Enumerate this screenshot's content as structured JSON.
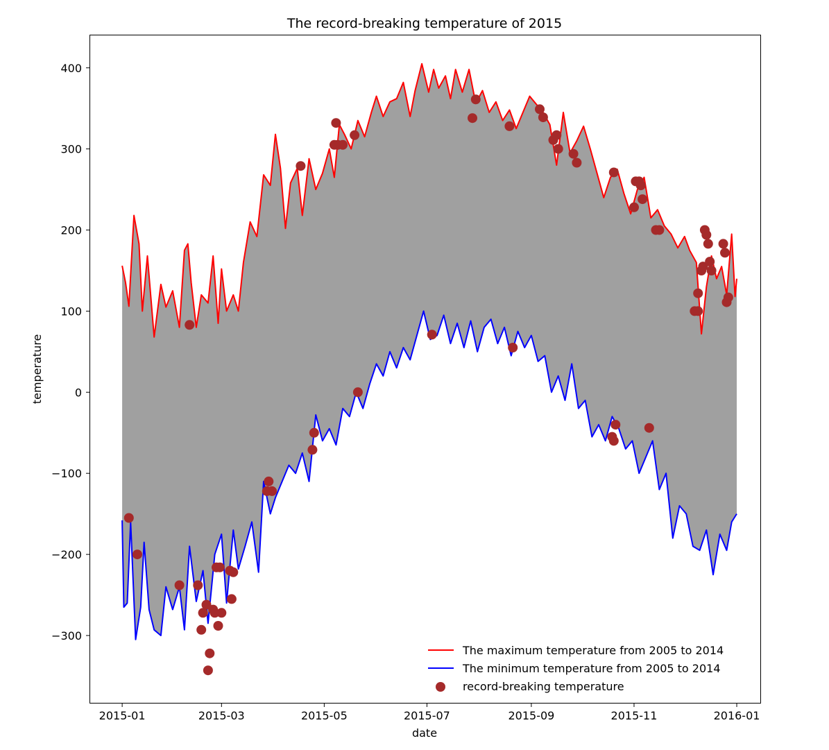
{
  "chart_data": {
    "type": "line",
    "title": "The record-breaking temperature of 2015",
    "xlabel": "date",
    "ylabel": "temperature",
    "x_axis": {
      "type": "date",
      "range": [
        "2014-12-13",
        "2016-01-15"
      ],
      "ticks": [
        "2015-01",
        "2015-03",
        "2015-05",
        "2015-07",
        "2015-09",
        "2015-11",
        "2016-01"
      ]
    },
    "y_axis": {
      "range": [
        -383,
        440
      ],
      "ticks": [
        -300,
        -200,
        -100,
        0,
        100,
        200,
        300,
        400
      ]
    },
    "y_tick_labels": [
      "−300",
      "−200",
      "−100",
      "0",
      "100",
      "200",
      "300",
      "400"
    ],
    "grid": false,
    "fill_between": {
      "color": "#a0a0a0"
    },
    "legend_placement": "lower-right",
    "series": [
      {
        "name": "The maximum temperature from 2005 to 2014",
        "color": "#ff0000",
        "kind": "line",
        "points": [
          [
            "2015-01-01",
            156
          ],
          [
            "2015-01-03",
            135
          ],
          [
            "2015-01-05",
            106
          ],
          [
            "2015-01-08",
            218
          ],
          [
            "2015-01-11",
            183
          ],
          [
            "2015-01-13",
            100
          ],
          [
            "2015-01-16",
            168
          ],
          [
            "2015-01-20",
            68
          ],
          [
            "2015-01-24",
            133
          ],
          [
            "2015-01-27",
            105
          ],
          [
            "2015-01-31",
            125
          ],
          [
            "2015-02-04",
            80
          ],
          [
            "2015-02-07",
            175
          ],
          [
            "2015-02-09",
            183
          ],
          [
            "2015-02-11",
            135
          ],
          [
            "2015-02-14",
            80
          ],
          [
            "2015-02-17",
            120
          ],
          [
            "2015-02-21",
            110
          ],
          [
            "2015-02-24",
            168
          ],
          [
            "2015-02-27",
            85
          ],
          [
            "2015-03-01",
            152
          ],
          [
            "2015-03-04",
            100
          ],
          [
            "2015-03-08",
            120
          ],
          [
            "2015-03-11",
            100
          ],
          [
            "2015-03-14",
            160
          ],
          [
            "2015-03-18",
            210
          ],
          [
            "2015-03-22",
            192
          ],
          [
            "2015-03-26",
            268
          ],
          [
            "2015-03-30",
            255
          ],
          [
            "2015-04-02",
            318
          ],
          [
            "2015-04-05",
            276
          ],
          [
            "2015-04-08",
            202
          ],
          [
            "2015-04-11",
            258
          ],
          [
            "2015-04-15",
            276
          ],
          [
            "2015-04-18",
            218
          ],
          [
            "2015-04-22",
            288
          ],
          [
            "2015-04-26",
            250
          ],
          [
            "2015-04-30",
            270
          ],
          [
            "2015-05-04",
            300
          ],
          [
            "2015-05-07",
            265
          ],
          [
            "2015-05-10",
            330
          ],
          [
            "2015-05-13",
            318
          ],
          [
            "2015-05-17",
            300
          ],
          [
            "2015-05-21",
            335
          ],
          [
            "2015-05-25",
            315
          ],
          [
            "2015-05-29",
            345
          ],
          [
            "2015-06-01",
            365
          ],
          [
            "2015-06-05",
            340
          ],
          [
            "2015-06-09",
            358
          ],
          [
            "2015-06-13",
            362
          ],
          [
            "2015-06-17",
            382
          ],
          [
            "2015-06-21",
            340
          ],
          [
            "2015-06-24",
            372
          ],
          [
            "2015-06-28",
            405
          ],
          [
            "2015-07-02",
            370
          ],
          [
            "2015-07-05",
            398
          ],
          [
            "2015-07-08",
            375
          ],
          [
            "2015-07-12",
            390
          ],
          [
            "2015-07-15",
            362
          ],
          [
            "2015-07-18",
            398
          ],
          [
            "2015-07-22",
            370
          ],
          [
            "2015-07-26",
            398
          ],
          [
            "2015-07-30",
            356
          ],
          [
            "2015-08-03",
            372
          ],
          [
            "2015-08-07",
            345
          ],
          [
            "2015-08-11",
            358
          ],
          [
            "2015-08-15",
            335
          ],
          [
            "2015-08-19",
            348
          ],
          [
            "2015-08-23",
            325
          ],
          [
            "2015-08-27",
            345
          ],
          [
            "2015-08-31",
            365
          ],
          [
            "2015-09-04",
            355
          ],
          [
            "2015-09-08",
            345
          ],
          [
            "2015-09-12",
            330
          ],
          [
            "2015-09-16",
            280
          ],
          [
            "2015-09-20",
            345
          ],
          [
            "2015-09-24",
            295
          ],
          [
            "2015-09-28",
            310
          ],
          [
            "2015-10-02",
            328
          ],
          [
            "2015-10-06",
            300
          ],
          [
            "2015-10-10",
            270
          ],
          [
            "2015-10-14",
            240
          ],
          [
            "2015-10-18",
            265
          ],
          [
            "2015-10-22",
            275
          ],
          [
            "2015-10-26",
            245
          ],
          [
            "2015-10-30",
            220
          ],
          [
            "2015-11-03",
            250
          ],
          [
            "2015-11-07",
            265
          ],
          [
            "2015-11-11",
            215
          ],
          [
            "2015-11-15",
            225
          ],
          [
            "2015-11-19",
            205
          ],
          [
            "2015-11-23",
            195
          ],
          [
            "2015-11-27",
            178
          ],
          [
            "2015-12-01",
            192
          ],
          [
            "2015-12-04",
            175
          ],
          [
            "2015-12-08",
            160
          ],
          [
            "2015-12-11",
            72
          ],
          [
            "2015-12-14",
            130
          ],
          [
            "2015-12-17",
            168
          ],
          [
            "2015-12-20",
            140
          ],
          [
            "2015-12-23",
            155
          ],
          [
            "2015-12-26",
            120
          ],
          [
            "2015-12-29",
            195
          ],
          [
            "2015-12-31",
            118
          ],
          [
            "2016-01-01",
            140
          ]
        ]
      },
      {
        "name": "The minimum temperature from 2005 to 2014",
        "color": "#0000ff",
        "kind": "line",
        "points": [
          [
            "2015-01-01",
            -158
          ],
          [
            "2015-01-02",
            -265
          ],
          [
            "2015-01-04",
            -260
          ],
          [
            "2015-01-06",
            -160
          ],
          [
            "2015-01-09",
            -305
          ],
          [
            "2015-01-12",
            -265
          ],
          [
            "2015-01-14",
            -185
          ],
          [
            "2015-01-17",
            -268
          ],
          [
            "2015-01-20",
            -293
          ],
          [
            "2015-01-24",
            -300
          ],
          [
            "2015-01-27",
            -240
          ],
          [
            "2015-01-31",
            -268
          ],
          [
            "2015-02-04",
            -240
          ],
          [
            "2015-02-07",
            -293
          ],
          [
            "2015-02-10",
            -190
          ],
          [
            "2015-02-14",
            -258
          ],
          [
            "2015-02-18",
            -220
          ],
          [
            "2015-02-21",
            -285
          ],
          [
            "2015-02-25",
            -200
          ],
          [
            "2015-03-01",
            -175
          ],
          [
            "2015-03-04",
            -260
          ],
          [
            "2015-03-08",
            -170
          ],
          [
            "2015-03-11",
            -218
          ],
          [
            "2015-03-15",
            -190
          ],
          [
            "2015-03-19",
            -160
          ],
          [
            "2015-03-23",
            -222
          ],
          [
            "2015-03-26",
            -110
          ],
          [
            "2015-03-30",
            -150
          ],
          [
            "2015-04-02",
            -130
          ],
          [
            "2015-04-06",
            -110
          ],
          [
            "2015-04-10",
            -90
          ],
          [
            "2015-04-14",
            -100
          ],
          [
            "2015-04-18",
            -75
          ],
          [
            "2015-04-22",
            -110
          ],
          [
            "2015-04-26",
            -28
          ],
          [
            "2015-04-30",
            -60
          ],
          [
            "2015-05-04",
            -45
          ],
          [
            "2015-05-08",
            -65
          ],
          [
            "2015-05-12",
            -20
          ],
          [
            "2015-05-16",
            -30
          ],
          [
            "2015-05-20",
            0
          ],
          [
            "2015-05-24",
            -20
          ],
          [
            "2015-05-28",
            10
          ],
          [
            "2015-06-01",
            35
          ],
          [
            "2015-06-05",
            20
          ],
          [
            "2015-06-09",
            50
          ],
          [
            "2015-06-13",
            30
          ],
          [
            "2015-06-17",
            55
          ],
          [
            "2015-06-21",
            40
          ],
          [
            "2015-06-25",
            70
          ],
          [
            "2015-06-29",
            100
          ],
          [
            "2015-07-03",
            65
          ],
          [
            "2015-07-07",
            70
          ],
          [
            "2015-07-11",
            95
          ],
          [
            "2015-07-15",
            60
          ],
          [
            "2015-07-19",
            85
          ],
          [
            "2015-07-23",
            55
          ],
          [
            "2015-07-27",
            88
          ],
          [
            "2015-07-31",
            50
          ],
          [
            "2015-08-04",
            80
          ],
          [
            "2015-08-08",
            90
          ],
          [
            "2015-08-12",
            60
          ],
          [
            "2015-08-16",
            80
          ],
          [
            "2015-08-20",
            45
          ],
          [
            "2015-08-24",
            75
          ],
          [
            "2015-08-28",
            55
          ],
          [
            "2015-09-01",
            70
          ],
          [
            "2015-09-05",
            38
          ],
          [
            "2015-09-09",
            45
          ],
          [
            "2015-09-13",
            0
          ],
          [
            "2015-09-17",
            20
          ],
          [
            "2015-09-21",
            -10
          ],
          [
            "2015-09-25",
            35
          ],
          [
            "2015-09-29",
            -20
          ],
          [
            "2015-10-03",
            -10
          ],
          [
            "2015-10-07",
            -55
          ],
          [
            "2015-10-11",
            -40
          ],
          [
            "2015-10-15",
            -60
          ],
          [
            "2015-10-19",
            -30
          ],
          [
            "2015-10-23",
            -45
          ],
          [
            "2015-10-27",
            -70
          ],
          [
            "2015-10-31",
            -60
          ],
          [
            "2015-11-04",
            -100
          ],
          [
            "2015-11-08",
            -80
          ],
          [
            "2015-11-12",
            -60
          ],
          [
            "2015-11-16",
            -120
          ],
          [
            "2015-11-20",
            -100
          ],
          [
            "2015-11-24",
            -180
          ],
          [
            "2015-11-28",
            -140
          ],
          [
            "2015-12-02",
            -150
          ],
          [
            "2015-12-06",
            -190
          ],
          [
            "2015-12-10",
            -195
          ],
          [
            "2015-12-14",
            -170
          ],
          [
            "2015-12-18",
            -225
          ],
          [
            "2015-12-22",
            -175
          ],
          [
            "2015-12-26",
            -195
          ],
          [
            "2015-12-29",
            -160
          ],
          [
            "2016-01-01",
            -150
          ]
        ]
      },
      {
        "name": "record-breaking temperature",
        "color": "#a52a2a",
        "kind": "scatter",
        "points": [
          [
            "2015-01-05",
            -155
          ],
          [
            "2015-01-10",
            -200
          ],
          [
            "2015-02-04",
            -238
          ],
          [
            "2015-02-10",
            83
          ],
          [
            "2015-02-15",
            -238
          ],
          [
            "2015-02-17",
            -293
          ],
          [
            "2015-02-18",
            -272
          ],
          [
            "2015-02-20",
            -262
          ],
          [
            "2015-02-21",
            -343
          ],
          [
            "2015-02-22",
            -322
          ],
          [
            "2015-02-24",
            -268
          ],
          [
            "2015-02-25",
            -272
          ],
          [
            "2015-02-26",
            -216
          ],
          [
            "2015-02-27",
            -288
          ],
          [
            "2015-02-28",
            -216
          ],
          [
            "2015-03-01",
            -272
          ],
          [
            "2015-03-06",
            -220
          ],
          [
            "2015-03-07",
            -255
          ],
          [
            "2015-03-08",
            -222
          ],
          [
            "2015-03-28",
            -122
          ],
          [
            "2015-03-29",
            -110
          ],
          [
            "2015-03-31",
            -122
          ],
          [
            "2015-04-17",
            279
          ],
          [
            "2015-04-24",
            -71
          ],
          [
            "2015-04-25",
            -50
          ],
          [
            "2015-05-07",
            305
          ],
          [
            "2015-05-08",
            332
          ],
          [
            "2015-05-09",
            305
          ],
          [
            "2015-05-12",
            305
          ],
          [
            "2015-05-19",
            317
          ],
          [
            "2015-05-21",
            0
          ],
          [
            "2015-07-04",
            71
          ],
          [
            "2015-07-28",
            338
          ],
          [
            "2015-07-30",
            361
          ],
          [
            "2015-08-19",
            328
          ],
          [
            "2015-08-21",
            55
          ],
          [
            "2015-09-06",
            349
          ],
          [
            "2015-09-08",
            339
          ],
          [
            "2015-09-14",
            311
          ],
          [
            "2015-09-16",
            317
          ],
          [
            "2015-09-17",
            300
          ],
          [
            "2015-09-26",
            294
          ],
          [
            "2015-09-28",
            283
          ],
          [
            "2015-10-19",
            -55
          ],
          [
            "2015-10-20",
            -60
          ],
          [
            "2015-10-20",
            271
          ],
          [
            "2015-10-21",
            -40
          ],
          [
            "2015-11-01",
            228
          ],
          [
            "2015-11-02",
            260
          ],
          [
            "2015-11-04",
            260
          ],
          [
            "2015-11-05",
            255
          ],
          [
            "2015-11-06",
            238
          ],
          [
            "2015-11-10",
            -44
          ],
          [
            "2015-11-14",
            200
          ],
          [
            "2015-11-16",
            200
          ],
          [
            "2015-12-07",
            100
          ],
          [
            "2015-12-09",
            100
          ],
          [
            "2015-12-09",
            122
          ],
          [
            "2015-12-11",
            150
          ],
          [
            "2015-12-12",
            155
          ],
          [
            "2015-12-13",
            200
          ],
          [
            "2015-12-14",
            194
          ],
          [
            "2015-12-15",
            183
          ],
          [
            "2015-12-16",
            161
          ],
          [
            "2015-12-17",
            150
          ],
          [
            "2015-12-24",
            183
          ],
          [
            "2015-12-25",
            172
          ],
          [
            "2015-12-26",
            111
          ],
          [
            "2015-12-27",
            117
          ]
        ]
      }
    ]
  }
}
